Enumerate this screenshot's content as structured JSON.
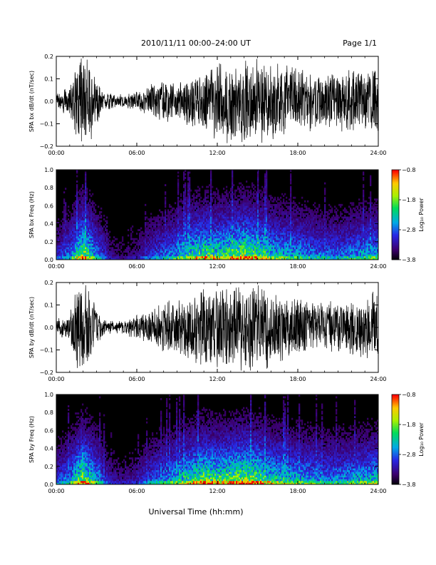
{
  "header": {
    "title": "2010/11/11  00:00–24:00 UT",
    "page": "Page 1/1"
  },
  "chart_data": [
    {
      "type": "line",
      "ylabel": "SPA bx dB/dt (nT/sec)",
      "xlabel": "",
      "xlim": [
        "00:00",
        "24:00"
      ],
      "xticks": [
        "00:00",
        "06:00",
        "12:00",
        "18:00",
        "24:00"
      ],
      "ylim": [
        -0.2,
        0.2
      ],
      "yticks": [
        "−0.2",
        "−0.1",
        "0.0",
        "0.1",
        "0.2"
      ],
      "yticks_values": [
        -0.2,
        -0.1,
        0.0,
        0.1,
        0.2
      ],
      "series_envelope": {
        "hours": [
          0,
          0.5,
          1,
          1.5,
          2,
          2.5,
          3,
          3.5,
          4,
          5,
          6,
          7,
          8,
          9,
          10,
          11,
          12,
          13,
          14,
          15,
          16,
          17,
          18,
          19,
          20,
          21,
          22,
          23,
          24
        ],
        "amplitude": [
          0.05,
          0.06,
          0.07,
          0.2,
          0.2,
          0.2,
          0.12,
          0.05,
          0.04,
          0.03,
          0.05,
          0.08,
          0.1,
          0.11,
          0.13,
          0.14,
          0.2,
          0.2,
          0.2,
          0.2,
          0.18,
          0.17,
          0.15,
          0.14,
          0.12,
          0.13,
          0.15,
          0.16,
          0.18
        ]
      },
      "color": "#000000"
    },
    {
      "type": "heatmap",
      "ylabel": "SPA bx Freq (Hz)",
      "xlabel": "",
      "xticks": [
        "00:00",
        "06:00",
        "12:00",
        "18:00",
        "24:00"
      ],
      "ylim": [
        0.0,
        1.0
      ],
      "yticks": [
        "0.0",
        "0.2",
        "0.4",
        "0.6",
        "0.8",
        "1.0"
      ],
      "yticks_values": [
        0.0,
        0.2,
        0.4,
        0.6,
        0.8,
        1.0
      ],
      "colorbar": {
        "label": "Log₁₀ Power",
        "range": [
          -3.8,
          -0.8
        ],
        "ticks": [
          "−0.8",
          "−1.8",
          "−2.8",
          "−3.8"
        ],
        "ticks_values": [
          -0.8,
          -1.8,
          -2.8,
          -3.8
        ]
      },
      "activity_by_hour": {
        "hours": [
          0,
          1,
          2,
          3,
          4,
          5,
          6,
          7,
          8,
          9,
          10,
          11,
          12,
          13,
          14,
          15,
          16,
          17,
          18,
          19,
          20,
          21,
          22,
          23,
          24
        ],
        "level": [
          0.3,
          0.45,
          0.9,
          0.5,
          0.2,
          0.15,
          0.2,
          0.35,
          0.45,
          0.55,
          0.7,
          0.8,
          0.75,
          0.8,
          0.9,
          0.8,
          0.65,
          0.6,
          0.55,
          0.5,
          0.45,
          0.45,
          0.5,
          0.55,
          0.6
        ]
      }
    },
    {
      "type": "line",
      "ylabel": "SPA by dB/dt (nT/sec)",
      "xlabel": "",
      "xlim": [
        "00:00",
        "24:00"
      ],
      "xticks": [
        "00:00",
        "06:00",
        "12:00",
        "18:00",
        "24:00"
      ],
      "ylim": [
        -0.2,
        0.2
      ],
      "yticks": [
        "−0.2",
        "−0.1",
        "0.0",
        "0.1",
        "0.2"
      ],
      "yticks_values": [
        -0.2,
        -0.1,
        0.0,
        0.1,
        0.2
      ],
      "series_envelope": {
        "hours": [
          0,
          0.5,
          1,
          1.5,
          2,
          2.5,
          3,
          3.5,
          4,
          5,
          6,
          7,
          8,
          9,
          10,
          11,
          12,
          13,
          14,
          15,
          16,
          17,
          18,
          19,
          20,
          21,
          22,
          23,
          24
        ],
        "amplitude": [
          0.04,
          0.05,
          0.06,
          0.2,
          0.2,
          0.2,
          0.1,
          0.04,
          0.03,
          0.03,
          0.06,
          0.09,
          0.12,
          0.14,
          0.17,
          0.2,
          0.2,
          0.2,
          0.2,
          0.2,
          0.18,
          0.16,
          0.15,
          0.13,
          0.12,
          0.12,
          0.14,
          0.15,
          0.17
        ]
      },
      "color": "#000000"
    },
    {
      "type": "heatmap",
      "ylabel": "SPA by Freq (Hz)",
      "xlabel": "Universal Time (hh:mm)",
      "xticks": [
        "00:00",
        "06:00",
        "12:00",
        "18:00",
        "24:00"
      ],
      "ylim": [
        0.0,
        1.0
      ],
      "yticks": [
        "0.0",
        "0.2",
        "0.4",
        "0.6",
        "0.8",
        "1.0"
      ],
      "yticks_values": [
        0.0,
        0.2,
        0.4,
        0.6,
        0.8,
        1.0
      ],
      "colorbar": {
        "label": "Log₁₀ Power",
        "range": [
          -3.8,
          -0.8
        ],
        "ticks": [
          "−0.8",
          "−1.8",
          "−2.8",
          "−3.8"
        ],
        "ticks_values": [
          -0.8,
          -1.8,
          -2.8,
          -3.8
        ]
      },
      "activity_by_hour": {
        "hours": [
          0,
          1,
          2,
          3,
          4,
          5,
          6,
          7,
          8,
          9,
          10,
          11,
          12,
          13,
          14,
          15,
          16,
          17,
          18,
          19,
          20,
          21,
          22,
          23,
          24
        ],
        "level": [
          0.35,
          0.5,
          0.95,
          0.55,
          0.25,
          0.2,
          0.25,
          0.4,
          0.5,
          0.6,
          0.75,
          0.85,
          0.8,
          0.85,
          0.9,
          0.85,
          0.7,
          0.65,
          0.6,
          0.55,
          0.5,
          0.5,
          0.55,
          0.6,
          0.65
        ]
      }
    }
  ]
}
